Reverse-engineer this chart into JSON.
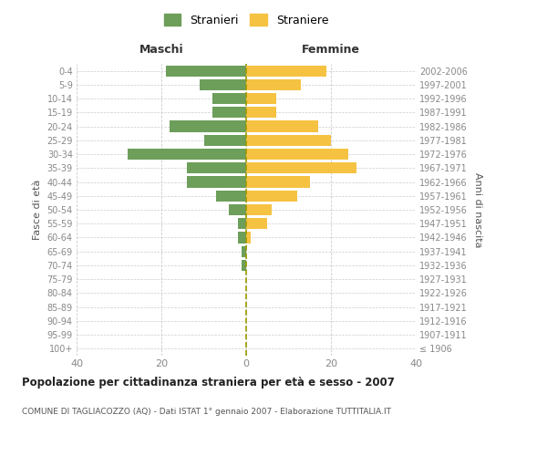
{
  "age_groups": [
    "100+",
    "95-99",
    "90-94",
    "85-89",
    "80-84",
    "75-79",
    "70-74",
    "65-69",
    "60-64",
    "55-59",
    "50-54",
    "45-49",
    "40-44",
    "35-39",
    "30-34",
    "25-29",
    "20-24",
    "15-19",
    "10-14",
    "5-9",
    "0-4"
  ],
  "birth_years": [
    "≤ 1906",
    "1907-1911",
    "1912-1916",
    "1917-1921",
    "1922-1926",
    "1927-1931",
    "1932-1936",
    "1937-1941",
    "1942-1946",
    "1947-1951",
    "1952-1956",
    "1957-1961",
    "1962-1966",
    "1967-1971",
    "1972-1976",
    "1977-1981",
    "1982-1986",
    "1987-1991",
    "1992-1996",
    "1997-2001",
    "2002-2006"
  ],
  "maschi": [
    0,
    0,
    0,
    0,
    0,
    0,
    1,
    1,
    2,
    2,
    4,
    7,
    14,
    14,
    28,
    10,
    18,
    8,
    8,
    11,
    19
  ],
  "femmine": [
    0,
    0,
    0,
    0,
    0,
    0,
    0,
    0,
    1,
    5,
    6,
    12,
    15,
    26,
    24,
    20,
    17,
    7,
    7,
    13,
    19
  ],
  "maschi_color": "#6d9e5a",
  "femmine_color": "#f5c242",
  "title_main": "Popolazione per cittadinanza straniera per età e sesso - 2007",
  "title_sub": "COMUNE DI TAGLIACOZZO (AQ) - Dati ISTAT 1° gennaio 2007 - Elaborazione TUTTITALIA.IT",
  "xlabel_left": "Maschi",
  "xlabel_right": "Femmine",
  "ylabel_left": "Fasce di età",
  "ylabel_right": "Anni di nascita",
  "legend_maschi": "Stranieri",
  "legend_femmine": "Straniere",
  "xlim": 40,
  "grid_color": "#cccccc",
  "bar_height": 0.8,
  "background_color": "#ffffff",
  "axis_label_color": "#555555",
  "tick_color": "#888888",
  "dashed_line_color": "#999900"
}
